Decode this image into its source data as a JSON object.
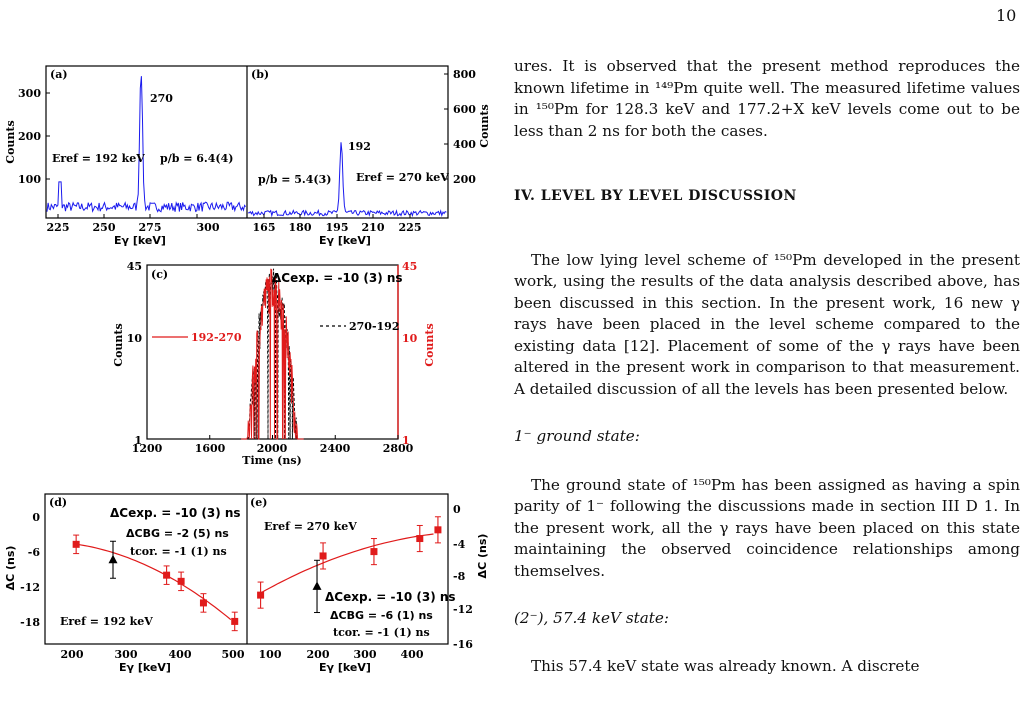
{
  "page_number": "10",
  "text": {
    "p1": "ures. It is observed that the present method reproduces the known lifetime in ¹⁴⁹Pm quite well. The measured lifetime values in ¹⁵⁰Pm for 128.3 keV and 177.2+X keV levels come out to be less than 2 ns for both the cases.",
    "section_heading": "IV.   LEVEL BY LEVEL DISCUSSION",
    "p2": "The low lying level scheme of ¹⁵⁰Pm developed in the present work, using the results of the data analysis described above, has been discussed in this section. In the present work, 16 new γ rays have been placed in the level scheme compared to the existing data [12]. Placement of some of the γ rays have been altered in the present work in comparison to that measurement. A detailed discussion of all the levels has been presented below.",
    "sub1": "1⁻ ground state:",
    "p3": "The ground state of ¹⁵⁰Pm has been assigned as having a spin parity of 1⁻ following the discussions made in section III D 1. In the present work, all the γ rays have been placed on this state maintaining the observed coincidence relationships among themselves.",
    "sub2": "(2⁻), 57.4 keV state:",
    "p4_partial": "This 57.4 keV state was already known. A discrete"
  },
  "colors": {
    "blue": "#1a1aee",
    "red": "#e01b1b",
    "black": "#000000"
  },
  "chart_data": [
    {
      "panel": "(a)",
      "type": "line",
      "xlabel": "Eγ [keV]",
      "ylabel": "Counts",
      "xticks": [
        "225",
        "250",
        "275",
        "300"
      ],
      "yticks": [
        "100",
        "200",
        "300"
      ],
      "xlim": [
        218,
        328
      ],
      "ylim": [
        0,
        340
      ],
      "peaks": [
        {
          "x": 270,
          "y": 318
        }
      ],
      "annotations": [
        "270",
        "Eref = 192 keV",
        "p/b = 6.4(4)"
      ]
    },
    {
      "panel": "(b)",
      "type": "line",
      "xlabel": "Eγ [keV]",
      "ylabel": "Counts",
      "xticks": [
        "165",
        "180",
        "195",
        "210",
        "225"
      ],
      "yticks": [
        "200",
        "400",
        "600",
        "800"
      ],
      "xlim": [
        155,
        234
      ],
      "ylim": [
        0,
        870
      ],
      "peaks": [
        {
          "x": 192,
          "y": 420
        }
      ],
      "annotations": [
        "192",
        "p/b = 5.4(3)",
        "Eref = 270 keV"
      ]
    },
    {
      "panel": "(c)",
      "type": "line",
      "xlabel": "Time (ns)",
      "ylabel": "Counts",
      "xticks": [
        "1200",
        "1600",
        "2000",
        "2400",
        "2800"
      ],
      "yticks_left": [
        "1",
        "10",
        "45"
      ],
      "yticks_right": [
        "1",
        "10",
        "45"
      ],
      "xlim": [
        1200,
        2800
      ],
      "ylim": [
        1,
        45
      ],
      "log_y": true,
      "series": [
        {
          "name": "192-270",
          "color": "#e01b1b"
        },
        {
          "name": "270-192",
          "color": "#000000"
        }
      ],
      "annotation": "ΔCexp. = -10 (3) ns"
    },
    {
      "panel": "(d)",
      "type": "scatter",
      "xlabel": "Eγ [keV]",
      "ylabel": "ΔC (ns)",
      "xticks": [
        "200",
        "300",
        "400",
        "500"
      ],
      "yticks": [
        "0",
        "-6",
        "-12",
        "-18"
      ],
      "xlim": [
        150,
        510
      ],
      "ylim": [
        -22,
        2
      ],
      "points_red": [
        {
          "x": 204,
          "y": -6,
          "err": 1.5
        },
        {
          "x": 366,
          "y": -11,
          "err": 1.5
        },
        {
          "x": 392,
          "y": -12,
          "err": 1.5
        },
        {
          "x": 432,
          "y": -15.5,
          "err": 1.5
        },
        {
          "x": 488,
          "y": -18.5,
          "err": 1.5
        }
      ],
      "points_black": [
        {
          "x": 270,
          "y": -8.5,
          "err": 3
        }
      ],
      "annotations": [
        "ΔCexp. = -10 (3) ns",
        "ΔCBG = -2 (5) ns",
        "tcor. = -1 (1) ns",
        "Eref = 192 keV"
      ]
    },
    {
      "panel": "(e)",
      "type": "scatter",
      "xlabel": "Eγ [keV]",
      "ylabel": "ΔC (ns)",
      "xticks": [
        "100",
        "200",
        "300",
        "400"
      ],
      "yticks": [
        "0",
        "-4",
        "-8",
        "-12",
        "-16"
      ],
      "xlim": [
        55,
        450
      ],
      "ylim": [
        -16,
        1
      ],
      "points_red": [
        {
          "x": 80,
          "y": -10.5,
          "err": 1.5
        },
        {
          "x": 204,
          "y": -6,
          "err": 1.5
        },
        {
          "x": 305,
          "y": -5.5,
          "err": 1.5
        },
        {
          "x": 396,
          "y": -4,
          "err": 1.5
        },
        {
          "x": 432,
          "y": -3,
          "err": 1.5
        }
      ],
      "points_black": [
        {
          "x": 192,
          "y": -9.5,
          "err": 3
        }
      ],
      "annotations": [
        "Eref = 270 keV",
        "ΔCexp. = -10 (3) ns",
        "ΔCBG = -6 (1) ns",
        "tcor. = -1 (1) ns"
      ]
    }
  ]
}
